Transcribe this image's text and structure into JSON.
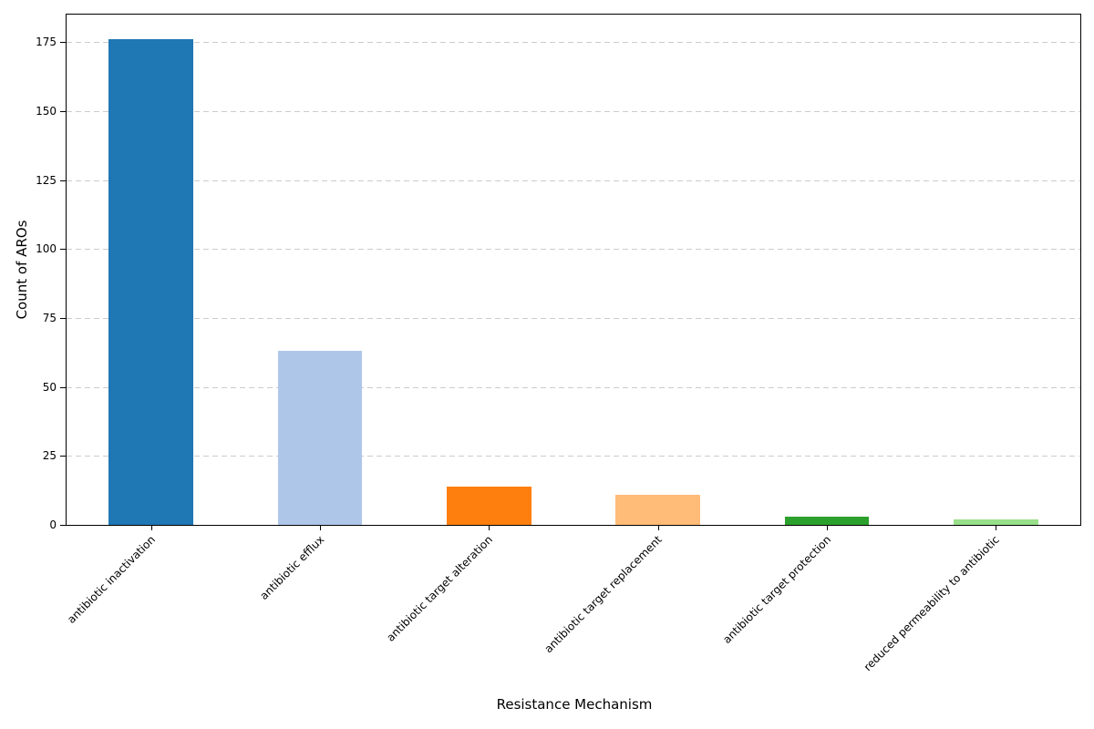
{
  "chart_data": {
    "type": "bar",
    "title": "",
    "xlabel": "Resistance Mechanism",
    "ylabel": "Count of AROs",
    "categories": [
      "antibiotic inactivation",
      "antibiotic efflux",
      "antibiotic target alteration",
      "antibiotic target replacement",
      "antibiotic target protection",
      "reduced permeability to antibiotic"
    ],
    "values": [
      176,
      63,
      14,
      11,
      3,
      2
    ],
    "bar_colors": [
      "#1f77b4",
      "#aec7e8",
      "#ff7f0e",
      "#ffbb78",
      "#2ca02c",
      "#98df8a"
    ],
    "yticks": [
      0,
      25,
      50,
      75,
      100,
      125,
      150,
      175
    ],
    "ylim": [
      0,
      185
    ],
    "xtick_rotation_deg": 45,
    "grid": "horizontal-dashed",
    "grid_color": "#cccccc",
    "spine_color": "#000000",
    "legend": "none",
    "background_color": "#ffffff"
  }
}
